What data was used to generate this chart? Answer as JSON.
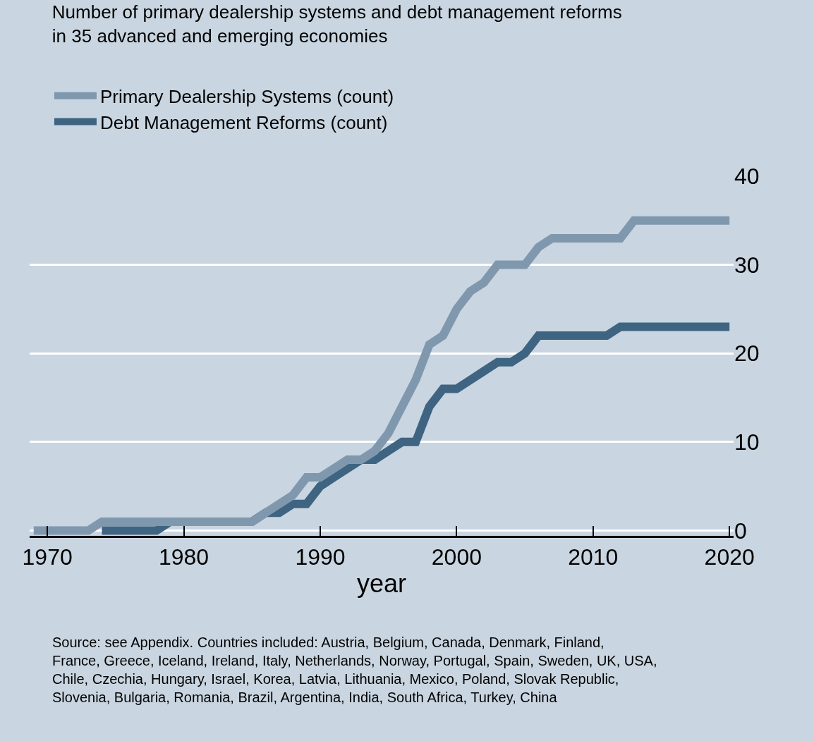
{
  "chart_data": {
    "type": "line",
    "title": "Number of primary dealership systems and debt management reforms\nin 35 advanced and emerging economies",
    "xlabel": "year",
    "series": [
      {
        "name": "Primary Dealership Systems (count)",
        "color": "#8098ae",
        "x": [
          1969,
          1970,
          1971,
          1972,
          1973,
          1974,
          1975,
          1976,
          1977,
          1978,
          1979,
          1980,
          1981,
          1982,
          1983,
          1984,
          1985,
          1986,
          1987,
          1988,
          1989,
          1990,
          1991,
          1992,
          1993,
          1994,
          1995,
          1996,
          1997,
          1998,
          1999,
          2000,
          2001,
          2002,
          2003,
          2004,
          2005,
          2006,
          2007,
          2008,
          2009,
          2010,
          2011,
          2012,
          2013,
          2014,
          2015,
          2016,
          2017,
          2018,
          2019,
          2020
        ],
        "values": [
          0,
          0,
          0,
          0,
          0,
          1,
          1,
          1,
          1,
          1,
          1,
          1,
          1,
          1,
          1,
          1,
          1,
          2,
          3,
          4,
          6,
          6,
          7,
          8,
          8,
          9,
          11,
          14,
          17,
          21,
          22,
          25,
          27,
          28,
          30,
          30,
          30,
          32,
          33,
          33,
          33,
          33,
          33,
          33,
          35,
          35,
          35,
          35,
          35,
          35,
          35,
          35
        ]
      },
      {
        "name": "Debt Management Reforms (count)",
        "color": "#3e6482",
        "x": [
          1974,
          1975,
          1976,
          1977,
          1978,
          1979,
          1980,
          1981,
          1982,
          1983,
          1984,
          1985,
          1986,
          1987,
          1988,
          1989,
          1990,
          1991,
          1992,
          1993,
          1994,
          1995,
          1996,
          1997,
          1998,
          1999,
          2000,
          2001,
          2002,
          2003,
          2004,
          2005,
          2006,
          2007,
          2008,
          2009,
          2010,
          2011,
          2012,
          2013,
          2014,
          2015,
          2016,
          2017,
          2018,
          2019,
          2020
        ],
        "values": [
          0,
          0,
          0,
          0,
          0,
          1,
          1,
          1,
          1,
          1,
          1,
          1,
          2,
          2,
          3,
          3,
          5,
          6,
          7,
          8,
          8,
          9,
          10,
          10,
          14,
          16,
          16,
          17,
          18,
          19,
          19,
          20,
          22,
          22,
          22,
          22,
          22,
          22,
          23,
          23,
          23,
          23,
          23,
          23,
          23,
          23,
          23
        ]
      }
    ],
    "xlim": [
      1968.7,
      2020.3
    ],
    "xticks": [
      1970,
      1980,
      1990,
      2000,
      2010,
      2020
    ],
    "ylim": [
      -0.6,
      40
    ],
    "yticks": [
      0,
      10,
      20,
      30,
      40
    ],
    "grid": "y",
    "legend": "top left",
    "marker": "none",
    "line_style": "solid",
    "annotations": [
      "Source: see Appendix. Countries included: Austria, Belgium, Canada, Denmark, Finland,\nFrance, Greece, Iceland, Ireland, Italy, Netherlands, Norway, Portugal, Spain, Sweden, UK, USA,\nChile, Czechia, Hungary, Israel, Korea, Latvia, Lithuania, Mexico, Poland, Slovak Republic,\nSlovenia, Bulgaria, Romania, Brazil, Argentina, India, South Africa, Turkey, China"
    ]
  }
}
